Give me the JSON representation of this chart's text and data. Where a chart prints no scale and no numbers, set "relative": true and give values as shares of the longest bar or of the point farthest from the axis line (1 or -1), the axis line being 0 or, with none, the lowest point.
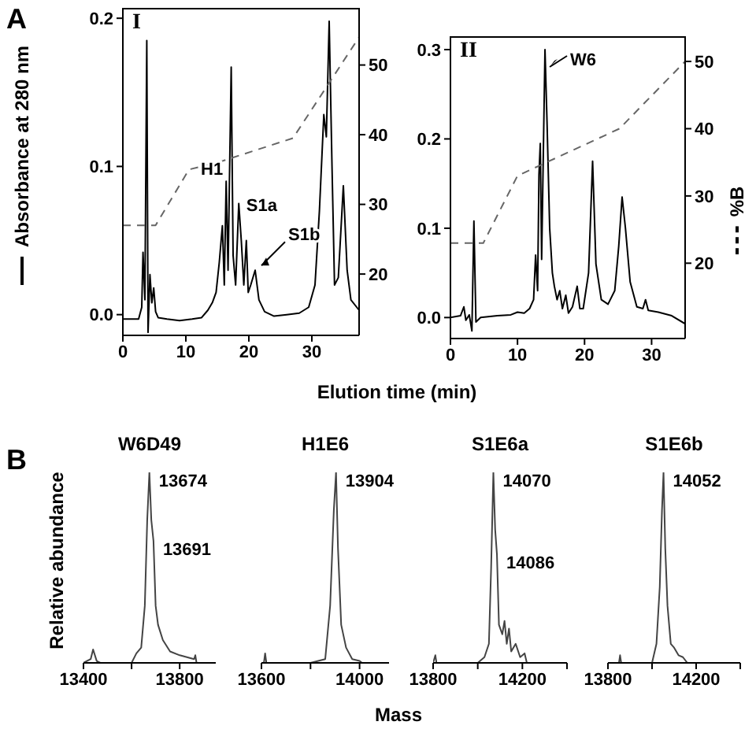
{
  "chart_data": [
    {
      "type": "line",
      "xlabel": "Elution time (min)",
      "ylabel": "Absorbance at 280 nm",
      "annotations": [
        "A",
        "I",
        {
          "text": "H1",
          "x": 16.4,
          "y": 0.09
        },
        {
          "text": "S1a",
          "x": 19.6,
          "y": 0.05
        },
        {
          "text": "S1b",
          "x": 21,
          "y": 0.03
        }
      ],
      "xlim": [
        0,
        37.5
      ],
      "xticks": [
        0,
        10,
        20,
        30
      ],
      "ylim": [
        -0.014,
        0.207
      ],
      "yticks": [
        {
          "value": 0,
          "label": "0.0"
        },
        0.1,
        0.2
      ],
      "y2lim": [
        11.2,
        58.2
      ],
      "y2ticks": [
        20,
        30,
        40,
        50
      ],
      "series": [
        {
          "color": "#000000",
          "x": [
            0,
            2.5,
            3.0,
            3.2,
            3.5,
            3.8,
            4.0,
            4.3,
            4.6,
            4.9,
            5.2,
            5.6,
            7,
            9,
            11,
            12.5,
            13.5,
            14.2,
            14.8,
            15.3,
            15.8,
            16.1,
            16.4,
            16.7,
            17.2,
            17.5,
            17.9,
            18.4,
            18.8,
            19.2,
            19.6,
            19.9,
            20.3,
            21,
            21.6,
            22.5,
            24,
            26,
            28,
            29.5,
            30.5,
            31.2,
            31.9,
            32.3,
            32.75,
            33.2,
            33.6,
            34.2,
            35,
            35.6,
            36.2,
            37.5
          ],
          "values": [
            -0.003,
            -0.003,
            0.005,
            0.042,
            0.01,
            0.185,
            -0.012,
            0.027,
            0.008,
            0.018,
            0.002,
            -0.002,
            -0.003,
            -0.004,
            -0.003,
            -0.002,
            0.003,
            0.008,
            0.015,
            0.035,
            0.06,
            0.02,
            0.09,
            0.03,
            0.167,
            0.04,
            0.02,
            0.075,
            0.05,
            0.02,
            0.05,
            0.015,
            0.02,
            0.03,
            0.01,
            0.002,
            -0.001,
            0,
            0.001,
            0.005,
            0.02,
            0.07,
            0.135,
            0.12,
            0.198,
            0.1,
            0.02,
            0.025,
            0.087,
            0.03,
            0.01,
            0.003
          ]
        },
        {
          "color": "#666666",
          "axis": "y2",
          "line_style": "dashed",
          "x": [
            0,
            5.2,
            10.5,
            15,
            27,
            37.5
          ],
          "values": [
            27,
            27,
            35,
            36,
            39.5,
            54
          ]
        }
      ]
    },
    {
      "type": "line",
      "y2label": "%B",
      "annotations": [
        "II",
        {
          "text": "W6",
          "x": 14.1,
          "y": 0.3
        }
      ],
      "xlim": [
        0,
        35
      ],
      "xticks": [
        0,
        10,
        20,
        30
      ],
      "ylim": [
        -0.0235,
        0.315
      ],
      "yticks": [
        {
          "value": 0,
          "label": "0.0"
        },
        0.1,
        0.2,
        0.3
      ],
      "y2lim": [
        8.8,
        53.75
      ],
      "y2ticks": [
        20,
        30,
        40,
        50
      ],
      "series": [
        {
          "color": "#000000",
          "x": [
            0,
            1.5,
            2.0,
            2.3,
            2.8,
            3.2,
            3.5,
            3.8,
            4.5,
            7,
            9,
            10,
            11,
            11.8,
            12.4,
            12.7,
            13.0,
            13.2,
            13.4,
            13.6,
            14.1,
            14.4,
            14.8,
            15.2,
            15.5,
            15.9,
            16.3,
            16.7,
            17.2,
            17.6,
            18.2,
            18.9,
            19.3,
            19.8,
            20.6,
            21.2,
            21.7,
            22.5,
            23.5,
            24.5,
            25.1,
            25.6,
            26.1,
            26.8,
            27.8,
            28.7,
            29.1,
            29.5,
            31,
            33,
            35
          ],
          "values": [
            0,
            0.002,
            0.012,
            -0.003,
            0.003,
            -0.015,
            0.108,
            -0.005,
            0,
            0.002,
            0.003,
            0.006,
            0.005,
            0.01,
            0.02,
            0.07,
            0.03,
            0.16,
            0.195,
            0.065,
            0.3,
            0.22,
            0.1,
            0.05,
            0.035,
            0.02,
            0.03,
            0.01,
            0.025,
            0.005,
            0.012,
            0.035,
            0.01,
            0.01,
            0.05,
            0.175,
            0.06,
            0.02,
            0.015,
            0.03,
            0.08,
            0.135,
            0.1,
            0.04,
            0.012,
            0.01,
            0.02,
            0.008,
            0.006,
            0.002,
            -0.007
          ]
        },
        {
          "color": "#666666",
          "axis": "y2",
          "line_style": "dashed",
          "x": [
            0,
            4.9,
            10,
            25.2,
            35
          ],
          "values": [
            23,
            23,
            33,
            40,
            50
          ]
        }
      ]
    },
    {
      "type": "line",
      "relative": true,
      "title": "W6D49",
      "ylabel": "Relative abundance",
      "annotations": [
        "B",
        {
          "text": "13674",
          "x": 13674,
          "y": 1
        },
        {
          "text": "13691",
          "x": 13691,
          "y": 0.64
        }
      ],
      "xlim": [
        13400,
        13950
      ],
      "xticks": [
        13400,
        {
          "value": 13600,
          "label": null
        },
        13800
      ],
      "series": [
        {
          "color": "#444444",
          "x": [
            13400,
            13430,
            13440,
            13455,
            13470,
            13600,
            13620,
            13640,
            13655,
            13665,
            13674,
            13682,
            13691,
            13700,
            13710,
            13730,
            13760,
            13800,
            13830,
            13860,
            13865,
            13870,
            13950
          ],
          "values": [
            0,
            0.02,
            0.07,
            0.01,
            0,
            0,
            0.05,
            0.08,
            0.3,
            0.75,
            1,
            0.75,
            0.64,
            0.3,
            0.2,
            0.12,
            0.06,
            0.04,
            0.03,
            0.02,
            0.04,
            0,
            0
          ]
        }
      ]
    },
    {
      "type": "line",
      "relative": true,
      "title": "H1E6",
      "xlabel": "Mass",
      "annotations": [
        {
          "text": "13904",
          "x": 13904,
          "y": 1
        }
      ],
      "xlim": [
        13600,
        14120
      ],
      "xticks": [
        13600,
        {
          "value": 13800,
          "label": null
        },
        14000
      ],
      "series": [
        {
          "color": "#444444",
          "x": [
            13600,
            13610,
            13615,
            13620,
            13800,
            13860,
            13880,
            13895,
            13904,
            13912,
            13925,
            13945,
            13970,
            14000,
            14010,
            14120
          ],
          "values": [
            0,
            0,
            0.05,
            0,
            0,
            0.02,
            0.3,
            0.8,
            1,
            0.6,
            0.2,
            0.08,
            0.02,
            0.01,
            0,
            0
          ]
        }
      ]
    },
    {
      "type": "line",
      "relative": true,
      "title": "S1E6a",
      "annotations": [
        {
          "text": "14070",
          "x": 14070,
          "y": 1
        },
        {
          "text": "14086",
          "x": 14086,
          "y": 0.57
        }
      ],
      "xlim": [
        13800,
        14400
      ],
      "xticks": [
        13800,
        {
          "value": 14000,
          "label": null
        },
        14200,
        {
          "value": 14400,
          "label": null
        }
      ],
      "series": [
        {
          "color": "#444444",
          "x": [
            13800,
            13810,
            13815,
            14000,
            14030,
            14050,
            14060,
            14070,
            14078,
            14086,
            14095,
            14110,
            14120,
            14130,
            14140,
            14150,
            14170,
            14190,
            14210,
            14220,
            14400
          ],
          "values": [
            0,
            0.04,
            0,
            0,
            0.03,
            0.1,
            0.5,
            1,
            0.7,
            0.57,
            0.2,
            0.15,
            0.22,
            0.1,
            0.18,
            0.06,
            0.1,
            0.03,
            0.05,
            0,
            0
          ]
        }
      ]
    },
    {
      "type": "line",
      "relative": true,
      "title": "S1E6b",
      "annotations": [
        {
          "text": "14052",
          "x": 14052,
          "y": 1
        }
      ],
      "xlim": [
        13800,
        14400
      ],
      "xticks": [
        13800,
        {
          "value": 14000,
          "label": null
        },
        14200,
        {
          "value": 14400,
          "label": null
        }
      ],
      "series": [
        {
          "color": "#444444",
          "x": [
            13800,
            13850,
            13855,
            13860,
            14000,
            14020,
            14035,
            14045,
            14052,
            14060,
            14070,
            14085,
            14100,
            14120,
            14140,
            14160,
            14400
          ],
          "values": [
            0,
            0,
            0.04,
            0,
            0,
            0.1,
            0.4,
            0.8,
            1,
            0.6,
            0.3,
            0.1,
            0.08,
            0.04,
            0.03,
            0,
            0
          ]
        }
      ]
    }
  ]
}
